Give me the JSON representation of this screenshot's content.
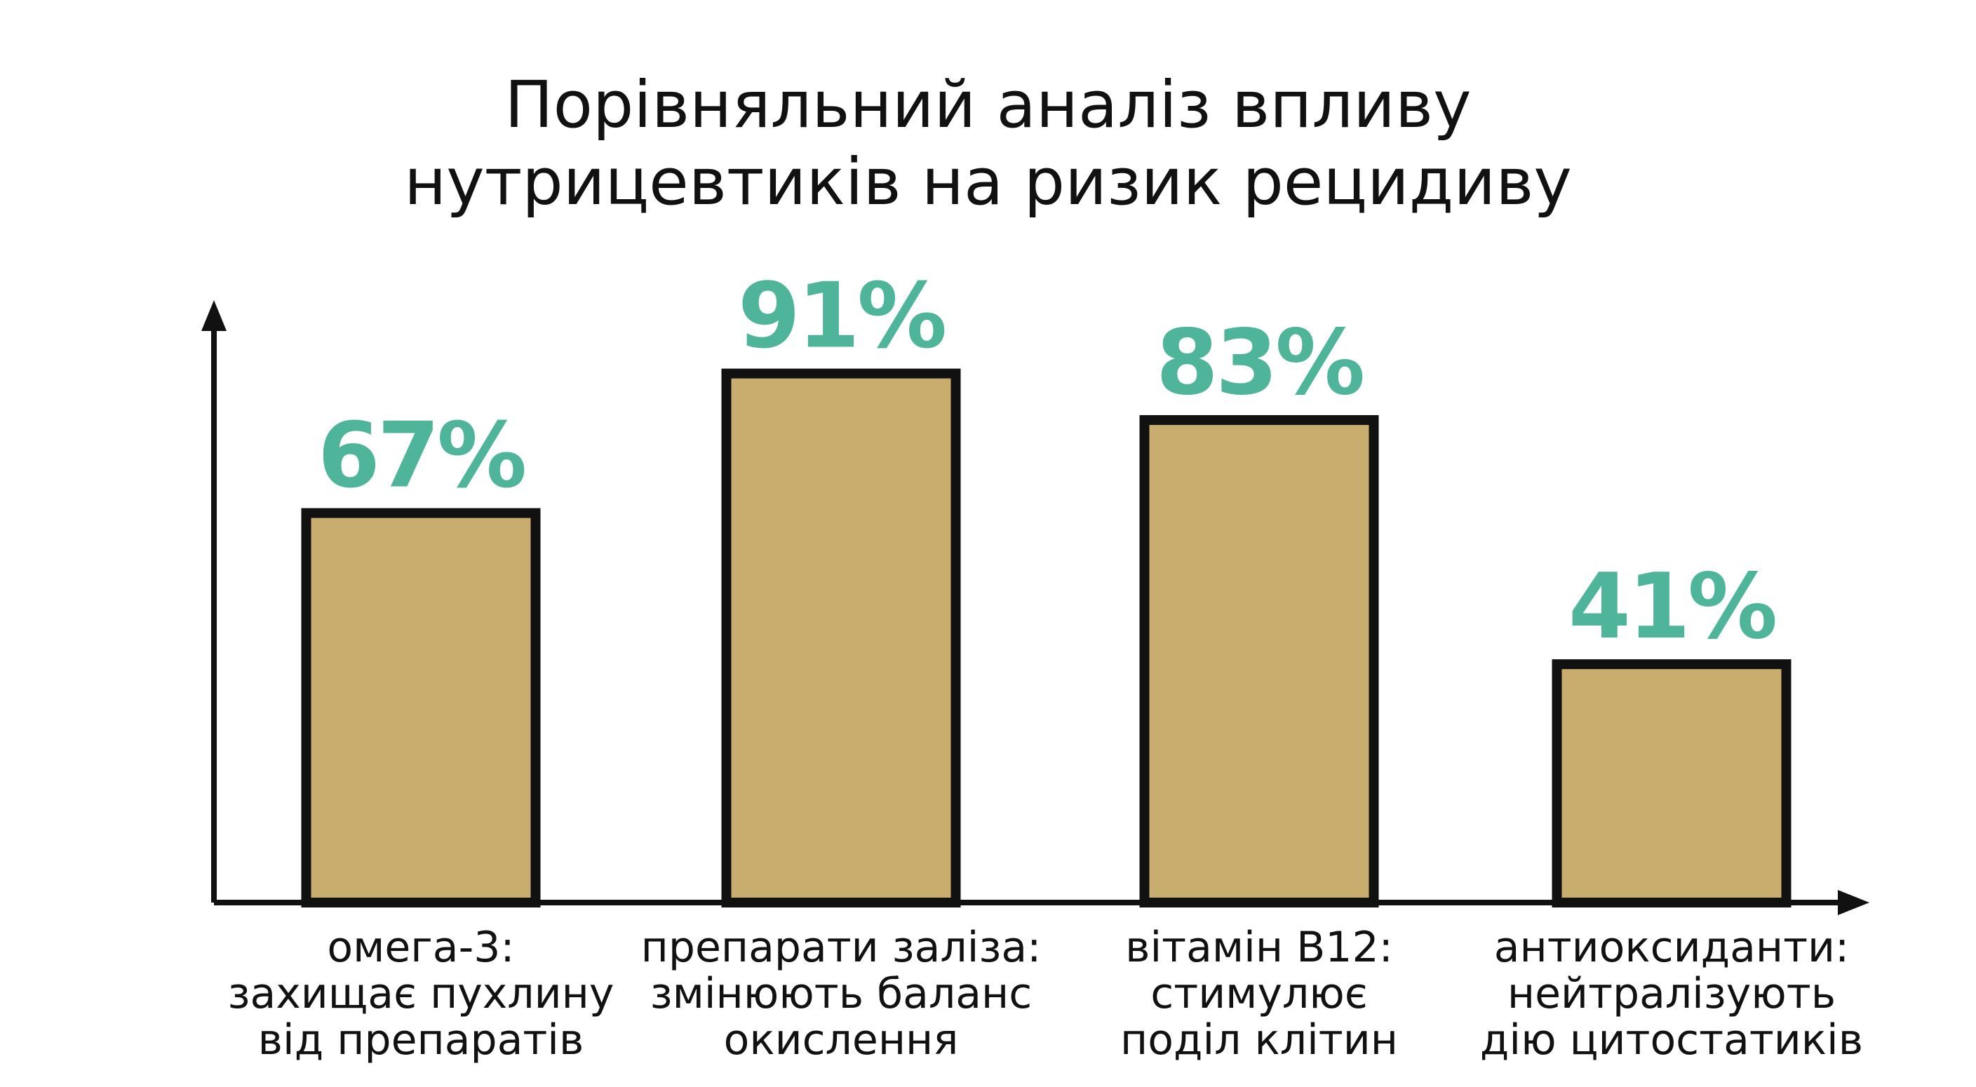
{
  "chart_data": {
    "type": "bar",
    "title": "Порівняльний аналіз впливу\nнутрицевтиків на ризик рецидиву",
    "categories": [
      "омега-3:\nзахищає пухлину\nвід препаратів",
      "препарати заліза:\nзмінюють баланс\nокислення",
      "вітамін B12:\nстимулює\nподіл клітин",
      "антиоксиданти:\nнейтралізують\nдію цитостатиків"
    ],
    "values": [
      67,
      91,
      83,
      41
    ],
    "value_labels": [
      "67%",
      "91%",
      "83%",
      "41%"
    ],
    "color": "#c9ad6e",
    "label_color": "#4fb59a",
    "ylim": [
      0,
      100
    ]
  }
}
